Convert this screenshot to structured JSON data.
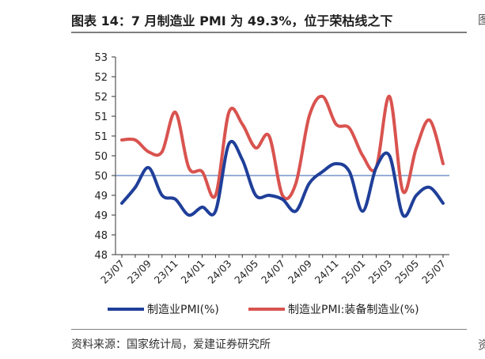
{
  "title": "图表 14：7 月制造业 PMI 为 49.3%，位于荣枯线之下",
  "source": "资料来源：国家统计局，爱建证券研究所",
  "edge_glyph_top": "图",
  "edge_glyph_bottom": "资",
  "chart_data": {
    "type": "line",
    "title": "",
    "xlabel": "",
    "ylabel": "",
    "y_tick_labels": [
      "48",
      "48",
      "49",
      "49",
      "50",
      "50",
      "51",
      "51",
      "52",
      "52",
      "53"
    ],
    "y_tick_values": [
      48.0,
      48.5,
      49.0,
      49.5,
      50.0,
      50.5,
      51.0,
      51.5,
      52.0,
      52.5,
      53.0
    ],
    "ylim": [
      48.0,
      53.0
    ],
    "x_tick_labels": [
      "23/07",
      "23/09",
      "23/11",
      "24/01",
      "24/03",
      "24/05",
      "24/07",
      "24/09",
      "24/11",
      "25/01",
      "25/03",
      "25/05",
      "25/07"
    ],
    "x": [
      "23/07",
      "23/08",
      "23/09",
      "23/10",
      "23/11",
      "23/12",
      "24/01",
      "24/02",
      "24/03",
      "24/04",
      "24/05",
      "24/06",
      "24/07",
      "24/08",
      "24/09",
      "24/10",
      "24/11",
      "24/12",
      "25/01",
      "25/02",
      "25/03",
      "25/04",
      "25/05",
      "25/06",
      "25/07"
    ],
    "reference_line": 50.0,
    "series": [
      {
        "name": "制造业PMI(%)",
        "color": "#1f3f99",
        "values": [
          49.3,
          49.7,
          50.2,
          49.5,
          49.4,
          49.0,
          49.2,
          49.1,
          50.8,
          50.4,
          49.5,
          49.5,
          49.4,
          49.1,
          49.8,
          50.1,
          50.3,
          50.1,
          49.1,
          50.2,
          50.5,
          49.0,
          49.5,
          49.7,
          49.3
        ]
      },
      {
        "name": "制造业PMI:装备制造业(%)",
        "color": "#d9534f",
        "values": [
          50.9,
          50.9,
          50.6,
          50.6,
          51.6,
          50.2,
          50.1,
          49.5,
          51.6,
          51.3,
          50.7,
          51.0,
          49.5,
          49.8,
          51.5,
          52.0,
          51.3,
          51.2,
          50.5,
          50.2,
          52.0,
          49.6,
          50.7,
          51.4,
          50.3
        ]
      }
    ],
    "legend_position": "bottom",
    "grid": false
  }
}
